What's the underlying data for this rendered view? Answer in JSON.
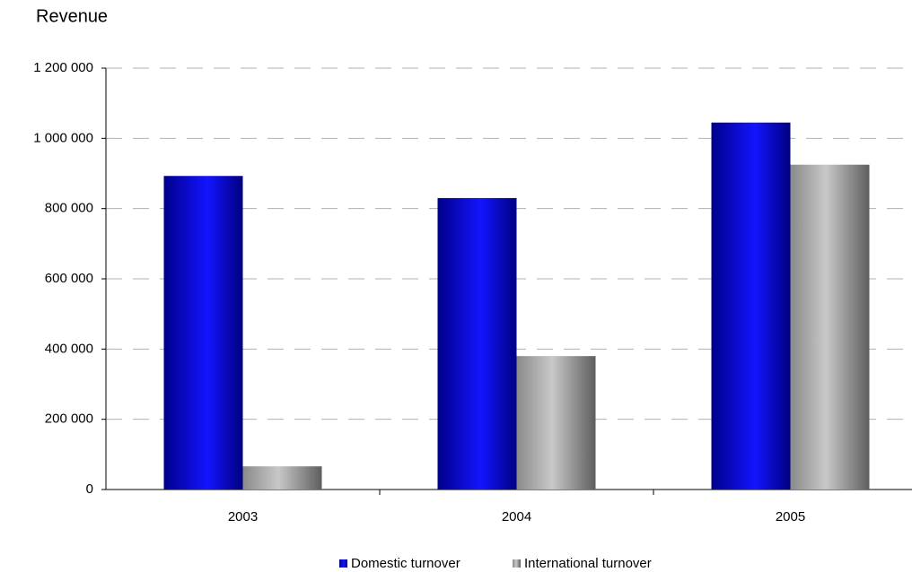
{
  "chart_data": {
    "type": "bar",
    "title": "Revenue",
    "categories": [
      "2003",
      "2004",
      "2005"
    ],
    "series": [
      {
        "name": "Domestic turnover",
        "color": "#0000ff",
        "values": [
          893000,
          830000,
          1045000
        ]
      },
      {
        "name": "International turnover",
        "color": "#b0b0b0",
        "values": [
          66000,
          380000,
          925000
        ]
      }
    ],
    "ylim": [
      0,
      1200000
    ],
    "yticks": [
      0,
      {
        "value": 200000,
        "label": "200 000"
      },
      {
        "value": 400000,
        "label": "400 000"
      },
      {
        "value": 600000,
        "label": "600 000"
      },
      {
        "value": 800000,
        "label": "800 000"
      },
      {
        "value": 1000000,
        "label": "1 000 000"
      },
      {
        "value": 1200000,
        "label": "1 200 000"
      }
    ],
    "grid": true,
    "legend": "bottom"
  }
}
